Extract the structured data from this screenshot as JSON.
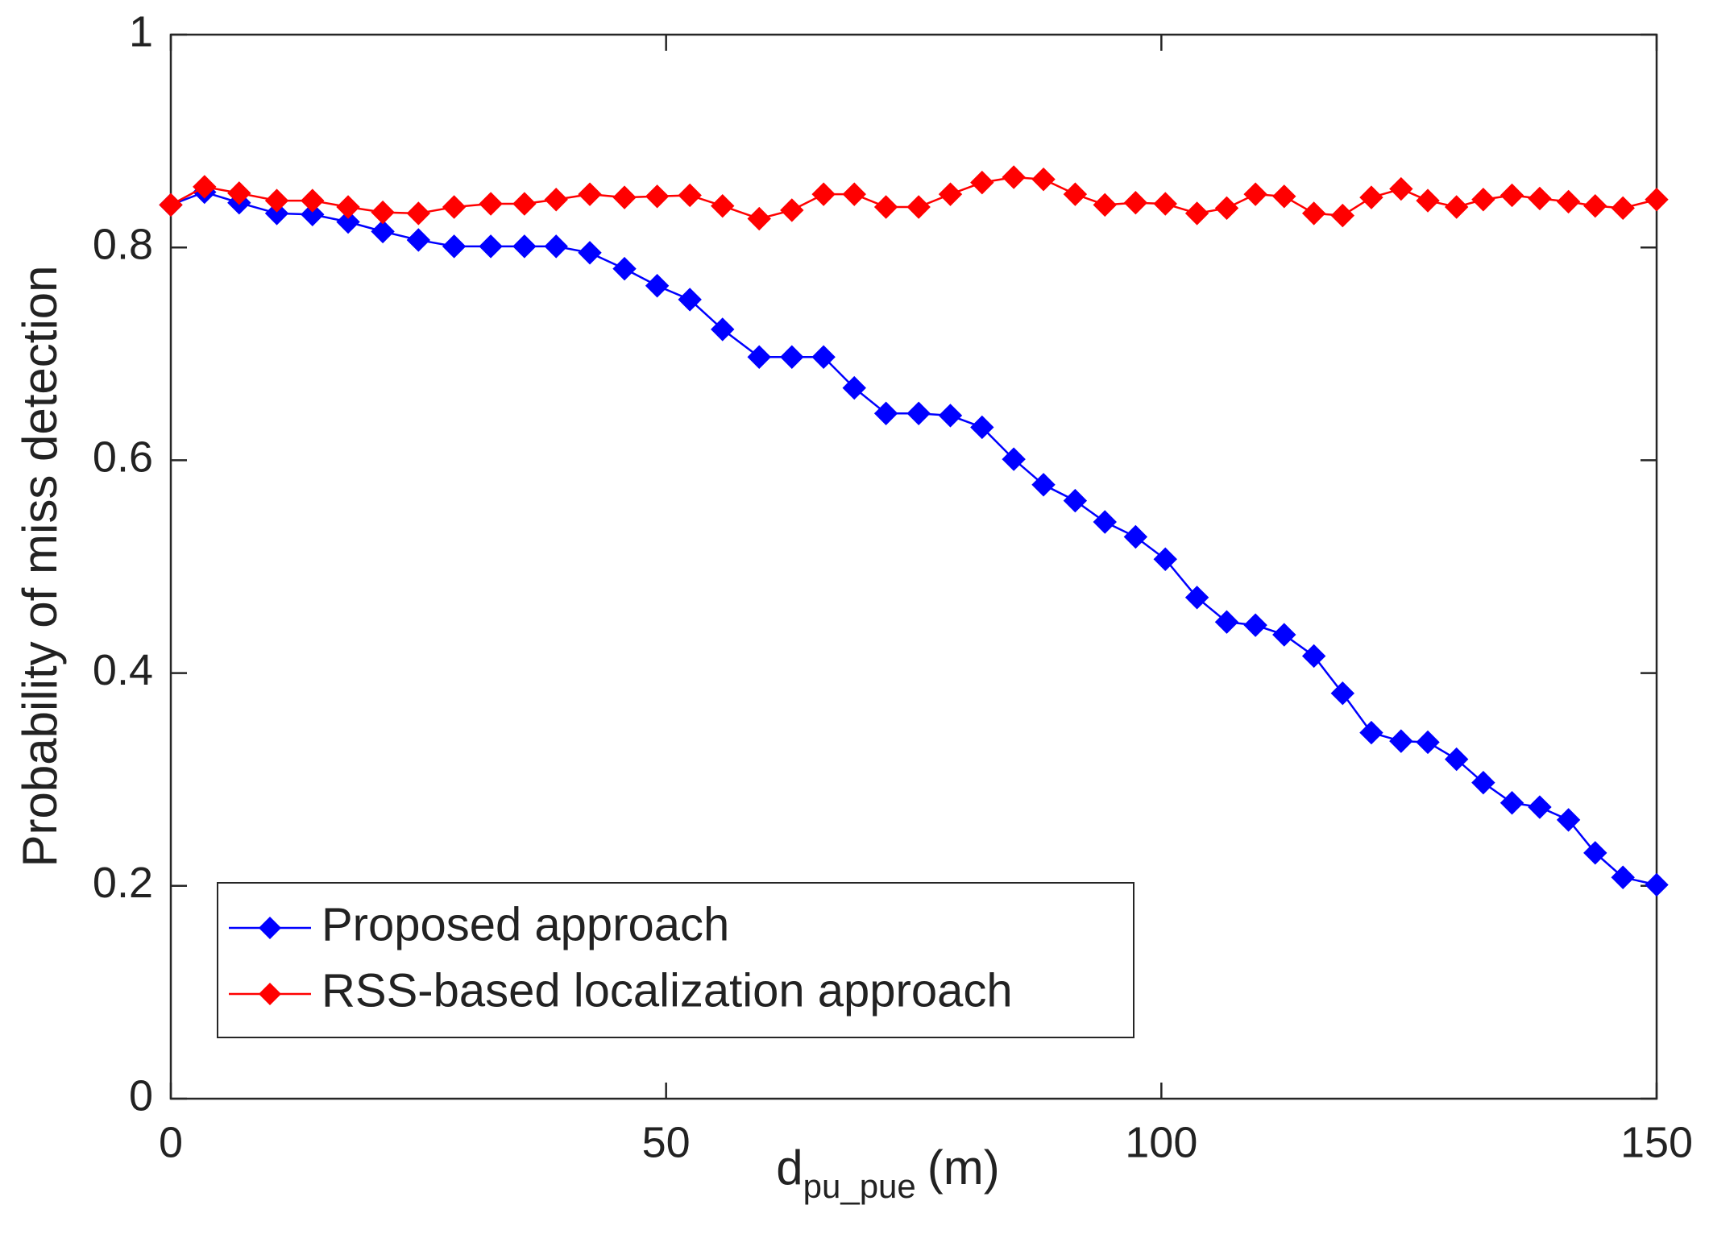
{
  "chart_data": {
    "type": "line",
    "x_label": "d",
    "x_label_subscript": "pu_pue",
    "x_label_suffix": "(m)",
    "y_label": "Probability of miss detection",
    "x": [
      0,
      3.4,
      6.9,
      10.7,
      14.3,
      17.9,
      21.4,
      25.0,
      28.6,
      32.3,
      35.7,
      38.9,
      42.3,
      45.8,
      49.1,
      52.4,
      55.7,
      59.4,
      62.7,
      65.9,
      69.0,
      72.2,
      75.5,
      78.7,
      81.9,
      85.1,
      88.1,
      91.3,
      94.3,
      97.4,
      100.4,
      103.6,
      106.6,
      109.5,
      112.4,
      115.4,
      118.3,
      121.2,
      124.2,
      126.9,
      129.8,
      132.5,
      135.4,
      138.2,
      141.1,
      143.8,
      146.6,
      150
    ],
    "series": [
      {
        "name": "Proposed approach",
        "color": "#0000ff",
        "values": [
          0.84,
          0.852,
          0.842,
          0.832,
          0.831,
          0.824,
          0.815,
          0.807,
          0.801,
          0.801,
          0.801,
          0.801,
          0.795,
          0.78,
          0.764,
          0.751,
          0.723,
          0.697,
          0.697,
          0.697,
          0.668,
          0.644,
          0.644,
          0.642,
          0.631,
          0.601,
          0.577,
          0.562,
          0.542,
          0.528,
          0.507,
          0.471,
          0.448,
          0.445,
          0.436,
          0.416,
          0.381,
          0.344,
          0.336,
          0.335,
          0.319,
          0.297,
          0.278,
          0.274,
          0.262,
          0.231,
          0.208,
          0.201
        ]
      },
      {
        "name": "RSS-based localization approach",
        "color": "#ff0000",
        "values": [
          0.84,
          0.857,
          0.851,
          0.844,
          0.844,
          0.838,
          0.833,
          0.832,
          0.838,
          0.841,
          0.841,
          0.845,
          0.85,
          0.847,
          0.848,
          0.849,
          0.839,
          0.827,
          0.835,
          0.85,
          0.85,
          0.838,
          0.838,
          0.85,
          0.861,
          0.866,
          0.864,
          0.85,
          0.84,
          0.842,
          0.841,
          0.832,
          0.837,
          0.85,
          0.848,
          0.832,
          0.83,
          0.847,
          0.855,
          0.844,
          0.838,
          0.845,
          0.849,
          0.846,
          0.843,
          0.839,
          0.837,
          0.845
        ]
      }
    ],
    "xlim": [
      0,
      150
    ],
    "xticks": [
      0,
      50,
      100,
      150
    ],
    "ylim": [
      0,
      1
    ],
    "yticks": [
      0,
      0.2,
      0.4,
      0.6,
      0.8,
      1
    ],
    "legend": "lower left",
    "marker": "diamond"
  }
}
